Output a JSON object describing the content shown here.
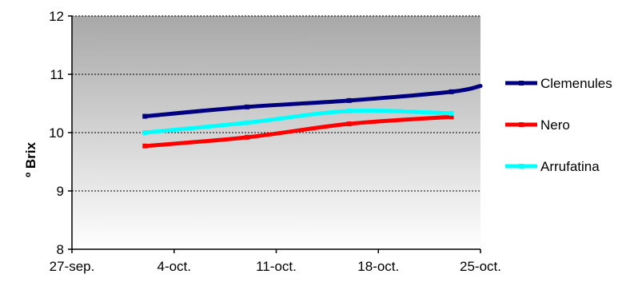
{
  "chart_data": {
    "type": "line",
    "title": "",
    "xlabel": "",
    "ylabel": "º Brix",
    "x_ticks": [
      "27-sep.",
      "4-oct.",
      "11-oct.",
      "18-oct.",
      "25-oct."
    ],
    "xlim": [
      "2000-09-27",
      "2000-10-25"
    ],
    "ylim": [
      8,
      12
    ],
    "y_ticks": [
      8,
      9,
      10,
      11,
      12
    ],
    "grid": "horizontal dashed",
    "legend_position": "right",
    "series": [
      {
        "name": "Clemenules",
        "color": "#000080",
        "x": [
          "2000-10-02",
          "2000-10-09",
          "2000-10-16",
          "2000-10-23",
          "2000-10-25"
        ],
        "values": [
          10.28,
          10.44,
          10.55,
          10.7,
          10.8
        ]
      },
      {
        "name": "Nero",
        "color": "#ff0000",
        "x": [
          "2000-10-02",
          "2000-10-09",
          "2000-10-16",
          "2000-10-23"
        ],
        "values": [
          9.77,
          9.92,
          10.15,
          10.27
        ]
      },
      {
        "name": "Arrufatina",
        "color": "#00ffff",
        "x": [
          "2000-10-02",
          "2000-10-09",
          "2000-10-16",
          "2000-10-23"
        ],
        "values": [
          10.0,
          10.17,
          10.37,
          10.33
        ]
      }
    ]
  }
}
